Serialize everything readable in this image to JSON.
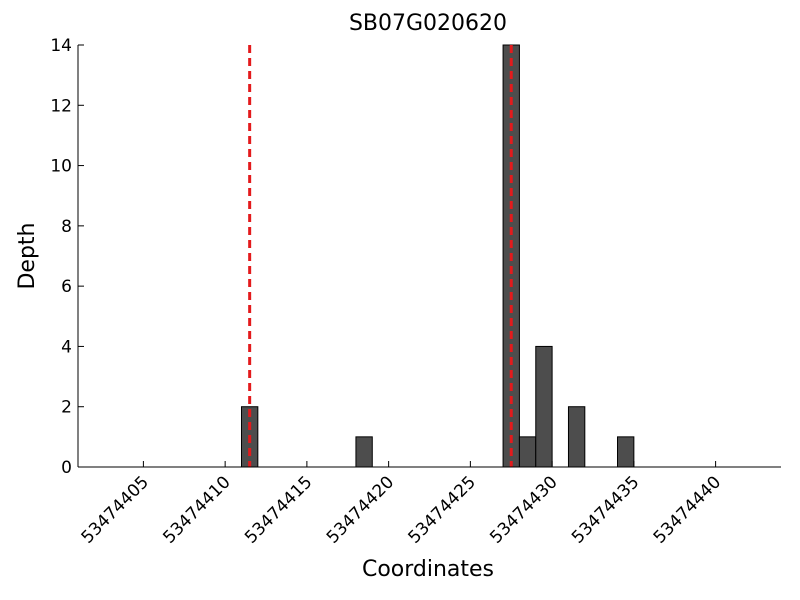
{
  "chart_data": {
    "type": "histogram",
    "title": "SB07G020620",
    "x_label": "Coordinates",
    "y_label": "Depth",
    "bins": [
      53474411,
      53474412,
      53474413,
      53474414,
      53474415,
      53474416,
      53474417,
      53474418,
      53474419,
      53474420,
      53474421,
      53474422,
      53474423,
      53474424,
      53474425,
      53474426,
      53474427,
      53474428,
      53474429,
      53474430,
      53474431,
      53474432,
      53474433,
      53474434,
      53474435
    ],
    "values": [
      2,
      0,
      0,
      0,
      0,
      0,
      0,
      1,
      0,
      0,
      0,
      0,
      0,
      0,
      0,
      0,
      14,
      1,
      4,
      0,
      2,
      0,
      0,
      1
    ],
    "color": "#4d4d4d",
    "vlines": [
      53474411.5,
      53474427.5
    ],
    "vline_color": "#e31a1c",
    "xlim": [
      53474401,
      53474444
    ],
    "xticks": [
      53474405,
      53474410,
      53474415,
      53474420,
      53474425,
      53474430,
      53474435,
      53474440
    ],
    "ylim": [
      0,
      14
    ],
    "yticks": [
      0,
      2,
      4,
      6,
      8,
      10,
      12,
      14
    ]
  }
}
